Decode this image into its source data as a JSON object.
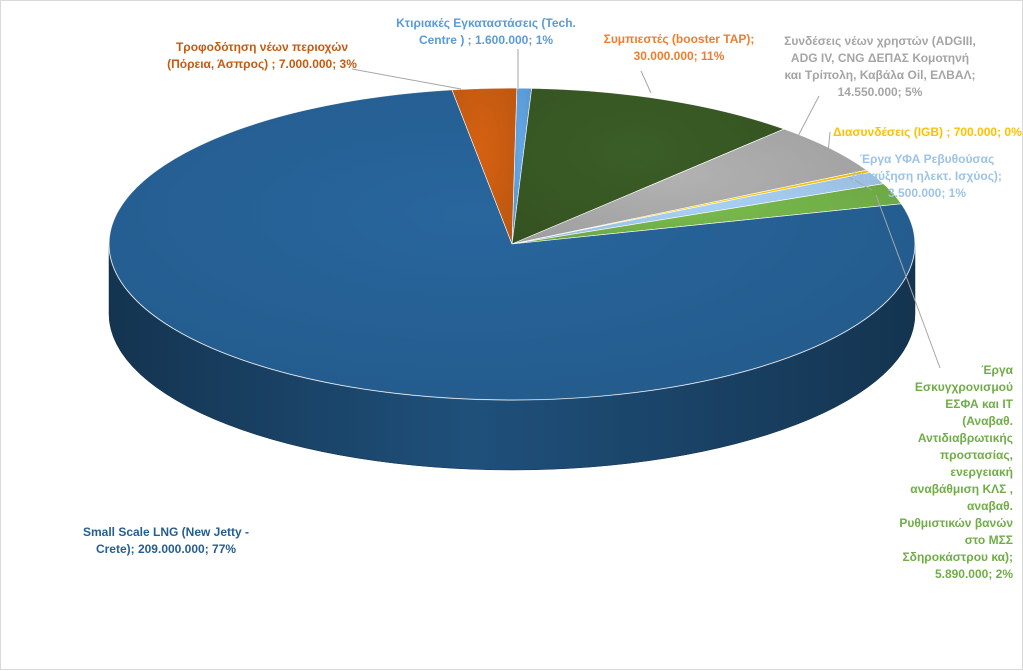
{
  "chart_data": {
    "type": "pie",
    "style": "3d",
    "categories": [
      "Κτιριακές Εγκαταστάσεις (Tech. Centre )",
      "Συμπιεστές (booster TAP)",
      "Συνδέσεις νέων χρηστών (ADGIII, ADG IV, CNG ΔΕΠΑΣ Κομοτηνή και Τρίπολη, Καβάλα Oil, ΕΛΒΑΛ",
      "Διασυνδέσεις (IGB)",
      "Έργα ΥΦΑ Ρεβυθούσας (επαύξηση ηλεκτ. Ισχύος)",
      "Έργα Εσκυγχρονισμού ΕΣΦΑ και IT (Αναβαθ. Αντιδιαβρωτικής προστασίας, ενεργειακή αναβάθμιση ΚΛΣ , αναβαθ. Ρυθμιστικών βανών στο ΜΣΣ Σδηροκάστρου κα)",
      "Small Scale LNG (New Jetty - Crete)",
      "Τροφοδότηση νέων περιοχών (Πόρεια, Άσπρος)"
    ],
    "values": [
      1600000,
      30000000,
      14550000,
      700000,
      3500000,
      5890000,
      209000000,
      7000000
    ],
    "colors": [
      "#5b9bd5",
      "#375623",
      "#a5a5a5",
      "#ffc000",
      "#9dc3e6",
      "#70ad47",
      "#255e91",
      "#c55a11"
    ],
    "labels": [
      {
        "lines": [
          "Κτιριακές Εγκαταστάσεις (Tech.",
          "Centre ) ; 1.600.000; 1%"
        ],
        "color": "#5b9bd5"
      },
      {
        "lines": [
          "Συμπιεστές (booster TAP);",
          "30.000.000; 11%"
        ],
        "color": "#ed7d31"
      },
      {
        "lines": [
          "Συνδέσεις νέων χρηστών (ADGIII,",
          "ADG IV, CNG ΔΕΠΑΣ Κομοτηνή",
          "και Τρίπολη, Καβάλα Oil, ΕΛΒΑΛ;",
          "14.550.000; 5%"
        ],
        "color": "#a5a5a5"
      },
      {
        "lines": [
          "Διασυνδέσεις (IGB) ; 700.000; 0%"
        ],
        "color": "#ffc000"
      },
      {
        "lines": [
          "Έργα ΥΦΑ Ρεβυθούσας",
          "(επαύξηση ηλεκτ. Ισχύος);",
          "3.500.000; 1%"
        ],
        "color": "#9dc3e6"
      },
      {
        "lines": [
          "Έργα",
          "Εσκυγχρονισμού",
          "ΕΣΦΑ και IT",
          "(Αναβαθ.",
          "Αντιδιαβρωτικής",
          "προστασίας,",
          "ενεργειακή",
          "αναβάθμιση ΚΛΣ ,",
          "αναβαθ.",
          "Ρυθμιστικών βανών",
          "στο ΜΣΣ",
          "Σδηροκάστρου κα);",
          "5.890.000; 2%"
        ],
        "color": "#70ad47"
      },
      {
        "lines": [
          "Small Scale LNG (New Jetty -",
          "Crete); 209.000.000; 77%"
        ],
        "color": "#255e91"
      },
      {
        "lines": [
          "Τροφοδότηση νέων περιοχών",
          "(Πόρεια, Άσπρος) ; 7.000.000; 3%"
        ],
        "color": "#c55a11"
      }
    ]
  }
}
